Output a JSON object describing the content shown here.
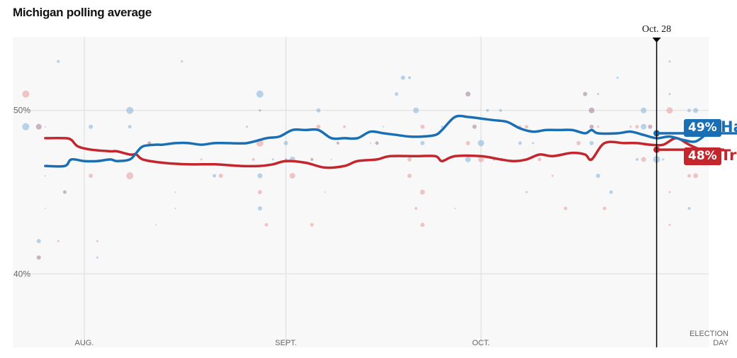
{
  "chart_data": {
    "type": "line",
    "title": "Michigan polling average",
    "ylim": [
      35.5,
      54.5
    ],
    "yticks": [
      {
        "value": 50,
        "label": "50%"
      },
      {
        "value": 40,
        "label": "40%"
      }
    ],
    "x_range": [
      "2024-07-21",
      "2024-11-05"
    ],
    "xticks": [
      {
        "date": "2024-08-01",
        "label": "AUG."
      },
      {
        "date": "2024-09-01",
        "label": "SEPT."
      },
      {
        "date": "2024-10-01",
        "label": "OCT."
      }
    ],
    "election_day": {
      "date": "2024-11-05",
      "label_line1": "ELECTION",
      "label_line2": "DAY"
    },
    "current_marker": {
      "date": "2024-10-28",
      "label": "Oct. 28"
    },
    "grid": true,
    "series": [
      {
        "name": "Harris",
        "short_label": "Ha",
        "final_label": "49%",
        "color": "#1a6fb4",
        "dot_color": "#8cb8db",
        "points": [
          [
            5,
            46.6
          ],
          [
            8,
            46.6
          ],
          [
            9,
            47.0
          ],
          [
            11,
            46.9
          ],
          [
            13,
            46.9
          ],
          [
            15,
            47.0
          ],
          [
            16,
            46.9
          ],
          [
            18,
            47.0
          ],
          [
            19,
            47.4
          ],
          [
            20,
            47.8
          ],
          [
            22,
            47.9
          ],
          [
            23,
            47.9
          ],
          [
            25,
            48.0
          ],
          [
            27,
            48.0
          ],
          [
            29,
            47.9
          ],
          [
            31,
            48.0
          ],
          [
            33,
            48.0
          ],
          [
            36,
            48.0
          ],
          [
            39,
            48.3
          ],
          [
            41,
            48.4
          ],
          [
            43,
            48.8
          ],
          [
            45,
            48.8
          ],
          [
            47,
            48.8
          ],
          [
            49,
            48.3
          ],
          [
            51,
            48.3
          ],
          [
            53,
            48.3
          ],
          [
            55,
            48.7
          ],
          [
            57,
            48.6
          ],
          [
            59,
            48.5
          ],
          [
            61,
            48.4
          ],
          [
            63,
            48.4
          ],
          [
            65,
            48.5
          ],
          [
            66,
            48.8
          ],
          [
            68,
            49.6
          ],
          [
            70,
            49.6
          ],
          [
            72,
            49.5
          ],
          [
            74,
            49.4
          ],
          [
            76,
            49.3
          ],
          [
            78,
            48.9
          ],
          [
            80,
            48.7
          ],
          [
            82,
            48.8
          ],
          [
            84,
            48.8
          ],
          [
            86,
            48.8
          ],
          [
            88,
            48.6
          ],
          [
            89,
            48.8
          ],
          [
            90,
            48.6
          ],
          [
            93,
            48.6
          ],
          [
            95,
            48.7
          ],
          [
            97,
            48.5
          ],
          [
            99,
            48.3
          ],
          [
            101,
            48.4
          ],
          [
            103,
            48.2
          ],
          [
            105,
            48.1
          ],
          [
            107,
            48.6
          ],
          [
            109,
            48.6
          ],
          [
            111,
            48.6
          ],
          [
            112,
            48.6
          ]
        ]
      },
      {
        "name": "Trump",
        "short_label": "Tru",
        "final_label": "48%",
        "color": "#c4262e",
        "dot_color": "#e8a3a6",
        "points": [
          [
            5,
            48.3
          ],
          [
            8,
            48.3
          ],
          [
            9,
            48.2
          ],
          [
            10,
            47.8
          ],
          [
            12,
            47.6
          ],
          [
            15,
            47.5
          ],
          [
            16,
            47.5
          ],
          [
            18,
            47.3
          ],
          [
            19,
            47.3
          ],
          [
            20,
            47.0
          ],
          [
            23,
            46.8
          ],
          [
            27,
            46.7
          ],
          [
            31,
            46.7
          ],
          [
            35,
            46.6
          ],
          [
            38,
            46.6
          ],
          [
            40,
            46.7
          ],
          [
            42,
            46.9
          ],
          [
            45,
            46.8
          ],
          [
            48,
            46.5
          ],
          [
            51,
            46.6
          ],
          [
            53,
            46.9
          ],
          [
            56,
            47.0
          ],
          [
            58,
            47.2
          ],
          [
            62,
            47.2
          ],
          [
            65,
            47.2
          ],
          [
            66,
            46.9
          ],
          [
            68,
            47.2
          ],
          [
            72,
            47.2
          ],
          [
            75,
            47.0
          ],
          [
            77,
            46.9
          ],
          [
            79,
            47.0
          ],
          [
            81,
            47.3
          ],
          [
            83,
            47.2
          ],
          [
            86,
            47.4
          ],
          [
            88,
            47.3
          ],
          [
            89,
            47.0
          ],
          [
            91,
            48.0
          ],
          [
            94,
            48.0
          ],
          [
            96,
            48.0
          ],
          [
            98,
            47.9
          ],
          [
            100,
            47.9
          ],
          [
            102,
            48.3
          ],
          [
            104,
            47.9
          ],
          [
            106,
            47.6
          ],
          [
            109,
            47.6
          ],
          [
            112,
            47.6
          ]
        ]
      }
    ],
    "polls": [
      {
        "d": 2,
        "v": 51,
        "c": "r",
        "s": 5
      },
      {
        "d": 2,
        "v": 49,
        "c": "b",
        "s": 5
      },
      {
        "d": 4,
        "v": 49,
        "c": "m",
        "s": 4
      },
      {
        "d": 7,
        "v": 53,
        "c": "b",
        "s": 2
      },
      {
        "d": 5,
        "v": 49,
        "c": "b",
        "s": 1
      },
      {
        "d": 5,
        "v": 46,
        "c": "b",
        "s": 1
      },
      {
        "d": 8,
        "v": 45,
        "c": "m",
        "s": 2.5
      },
      {
        "d": 5,
        "v": 44,
        "c": "r",
        "s": 1
      },
      {
        "d": 7,
        "v": 42,
        "c": "r",
        "s": 1.5
      },
      {
        "d": 4,
        "v": 42,
        "c": "b",
        "s": 3
      },
      {
        "d": 4,
        "v": 41,
        "c": "m",
        "s": 3
      },
      {
        "d": 12,
        "v": 49,
        "c": "b",
        "s": 3
      },
      {
        "d": 12,
        "v": 46,
        "c": "r",
        "s": 3
      },
      {
        "d": 13,
        "v": 42,
        "c": "r",
        "s": 1.5
      },
      {
        "d": 13,
        "v": 41,
        "c": "b",
        "s": 1.5
      },
      {
        "d": 18,
        "v": 50,
        "c": "b",
        "s": 5
      },
      {
        "d": 18,
        "v": 49,
        "c": "b",
        "s": 2.5
      },
      {
        "d": 18,
        "v": 46,
        "c": "r",
        "s": 5
      },
      {
        "d": 21,
        "v": 48,
        "c": "m",
        "s": 2.5
      },
      {
        "d": 22,
        "v": 43,
        "c": "r",
        "s": 1
      },
      {
        "d": 26,
        "v": 53,
        "c": "b",
        "s": 1.5
      },
      {
        "d": 25,
        "v": 45,
        "c": "b",
        "s": 1
      },
      {
        "d": 25,
        "v": 44,
        "c": "b",
        "s": 1
      },
      {
        "d": 29,
        "v": 47,
        "c": "r",
        "s": 1.5
      },
      {
        "d": 31,
        "v": 46,
        "c": "b",
        "s": 2.5
      },
      {
        "d": 32,
        "v": 46,
        "c": "r",
        "s": 3
      },
      {
        "d": 38,
        "v": 51,
        "c": "b",
        "s": 5
      },
      {
        "d": 38,
        "v": 50,
        "c": "m",
        "s": 1.5
      },
      {
        "d": 38,
        "v": 48,
        "c": "r",
        "s": 5
      },
      {
        "d": 38,
        "v": 46,
        "c": "b",
        "s": 3.5
      },
      {
        "d": 38,
        "v": 45,
        "c": "r",
        "s": 3
      },
      {
        "d": 38,
        "v": 44,
        "c": "b",
        "s": 3
      },
      {
        "d": 39,
        "v": 43,
        "c": "r",
        "s": 2.5
      },
      {
        "d": 37,
        "v": 47,
        "c": "r",
        "s": 2
      },
      {
        "d": 36,
        "v": 49,
        "c": "b",
        "s": 1.5
      },
      {
        "d": 40,
        "v": 47,
        "c": "b",
        "s": 1.5
      },
      {
        "d": 42,
        "v": 47,
        "c": "m",
        "s": 1.5
      },
      {
        "d": 42,
        "v": 48,
        "c": "b",
        "s": 3
      },
      {
        "d": 43,
        "v": 47,
        "c": "b",
        "s": 4
      },
      {
        "d": 43,
        "v": 46,
        "c": "r",
        "s": 4
      },
      {
        "d": 47,
        "v": 50,
        "c": "b",
        "s": 3
      },
      {
        "d": 47,
        "v": 49,
        "c": "r",
        "s": 3
      },
      {
        "d": 46,
        "v": 47,
        "c": "m",
        "s": 2
      },
      {
        "d": 46,
        "v": 43,
        "c": "r",
        "s": 2.5
      },
      {
        "d": 48,
        "v": 45,
        "c": "b",
        "s": 1
      },
      {
        "d": 49,
        "v": 47,
        "c": "b",
        "s": 1
      },
      {
        "d": 50,
        "v": 48,
        "c": "m",
        "s": 2
      },
      {
        "d": 51,
        "v": 49,
        "c": "r",
        "s": 2
      },
      {
        "d": 55,
        "v": 48,
        "c": "b",
        "s": 1
      },
      {
        "d": 57,
        "v": 49,
        "c": "b",
        "s": 1
      },
      {
        "d": 56,
        "v": 48,
        "c": "m",
        "s": 2.5
      },
      {
        "d": 59,
        "v": 51,
        "c": "b",
        "s": 2.5
      },
      {
        "d": 60,
        "v": 52,
        "c": "b",
        "s": 3
      },
      {
        "d": 61,
        "v": 52,
        "c": "b",
        "s": 2
      },
      {
        "d": 62,
        "v": 50,
        "c": "b",
        "s": 4
      },
      {
        "d": 63,
        "v": 48,
        "c": "b",
        "s": 3
      },
      {
        "d": 61,
        "v": 46,
        "c": "r",
        "s": 3
      },
      {
        "d": 63,
        "v": 45,
        "c": "r",
        "s": 3.5
      },
      {
        "d": 62,
        "v": 44,
        "c": "r",
        "s": 2
      },
      {
        "d": 63,
        "v": 43,
        "c": "r",
        "s": 3
      },
      {
        "d": 61,
        "v": 47,
        "c": "r",
        "s": 3
      },
      {
        "d": 66,
        "v": 49,
        "c": "b",
        "s": 1.5
      },
      {
        "d": 63,
        "v": 49,
        "c": "r",
        "s": 3
      },
      {
        "d": 68,
        "v": 44,
        "c": "b",
        "s": 1
      },
      {
        "d": 70,
        "v": 48,
        "c": "r",
        "s": 3
      },
      {
        "d": 70,
        "v": 47,
        "c": "b",
        "s": 4
      },
      {
        "d": 70,
        "v": 51,
        "c": "m",
        "s": 3.5
      },
      {
        "d": 71,
        "v": 49,
        "c": "m",
        "s": 3
      },
      {
        "d": 72,
        "v": 48,
        "c": "b",
        "s": 4.5
      },
      {
        "d": 72,
        "v": 47,
        "c": "r",
        "s": 4
      },
      {
        "d": 73,
        "v": 50,
        "c": "b",
        "s": 2
      },
      {
        "d": 75,
        "v": 50,
        "c": "b",
        "s": 2
      },
      {
        "d": 74,
        "v": 47,
        "c": "b",
        "s": 2
      },
      {
        "d": 75,
        "v": 47,
        "c": "r",
        "s": 2
      },
      {
        "d": 78,
        "v": 49,
        "c": "r",
        "s": 2
      },
      {
        "d": 79,
        "v": 49,
        "c": "r",
        "s": 2.5
      },
      {
        "d": 78,
        "v": 48,
        "c": "b",
        "s": 2.5
      },
      {
        "d": 80,
        "v": 48,
        "c": "b",
        "s": 1.5
      },
      {
        "d": 79,
        "v": 45,
        "c": "b",
        "s": 1.5
      },
      {
        "d": 81,
        "v": 47,
        "c": "r",
        "s": 2.5
      },
      {
        "d": 83,
        "v": 46,
        "c": "r",
        "s": 1.5
      },
      {
        "d": 85,
        "v": 44,
        "c": "r",
        "s": 2.5
      },
      {
        "d": 88,
        "v": 51,
        "c": "m",
        "s": 3
      },
      {
        "d": 89,
        "v": 50,
        "c": "m",
        "s": 4
      },
      {
        "d": 89,
        "v": 49,
        "c": "m",
        "s": 3
      },
      {
        "d": 87,
        "v": 48,
        "c": "r",
        "s": 3
      },
      {
        "d": 89,
        "v": 48,
        "c": "b",
        "s": 3
      },
      {
        "d": 89,
        "v": 47,
        "c": "r",
        "s": 2.5
      },
      {
        "d": 90,
        "v": 51,
        "c": "b",
        "s": 1.5
      },
      {
        "d": 90,
        "v": 49,
        "c": "r",
        "s": 1.5
      },
      {
        "d": 90,
        "v": 46,
        "c": "b",
        "s": 3
      },
      {
        "d": 93,
        "v": 52,
        "c": "b",
        "s": 1.5
      },
      {
        "d": 92,
        "v": 45,
        "c": "b",
        "s": 2.5
      },
      {
        "d": 91,
        "v": 44,
        "c": "r",
        "s": 2.5
      },
      {
        "d": 95,
        "v": 49,
        "c": "r",
        "s": 1.5
      },
      {
        "d": 97,
        "v": 50,
        "c": "b",
        "s": 4
      },
      {
        "d": 96,
        "v": 49,
        "c": "r",
        "s": 2.5
      },
      {
        "d": 97,
        "v": 49,
        "c": "b",
        "s": 4
      },
      {
        "d": 98,
        "v": 49,
        "c": "m",
        "s": 3
      },
      {
        "d": 96,
        "v": 47,
        "c": "b",
        "s": 2
      },
      {
        "d": 97,
        "v": 47,
        "c": "r",
        "s": 3.5
      },
      {
        "d": 99,
        "v": 47,
        "c": "b",
        "s": 5
      },
      {
        "d": 100,
        "v": 47,
        "c": "b",
        "s": 1.5
      },
      {
        "d": 101,
        "v": 53,
        "c": "b",
        "s": 1.5
      },
      {
        "d": 101,
        "v": 51,
        "c": "b",
        "s": 1.5
      },
      {
        "d": 101,
        "v": 50,
        "c": "r",
        "s": 4.5
      },
      {
        "d": 101,
        "v": 45,
        "c": "r",
        "s": 1.5
      },
      {
        "d": 101,
        "v": 43,
        "c": "r",
        "s": 1.5
      },
      {
        "d": 104,
        "v": 50,
        "c": "b",
        "s": 2.5
      },
      {
        "d": 105,
        "v": 50,
        "c": "b",
        "s": 3.5
      },
      {
        "d": 104,
        "v": 46,
        "c": "r",
        "s": 2.5
      },
      {
        "d": 105,
        "v": 46,
        "c": "r",
        "s": 3.5
      },
      {
        "d": 104,
        "v": 44,
        "c": "b",
        "s": 2
      },
      {
        "d": 106,
        "v": 47,
        "c": "m",
        "s": 2
      }
    ]
  }
}
